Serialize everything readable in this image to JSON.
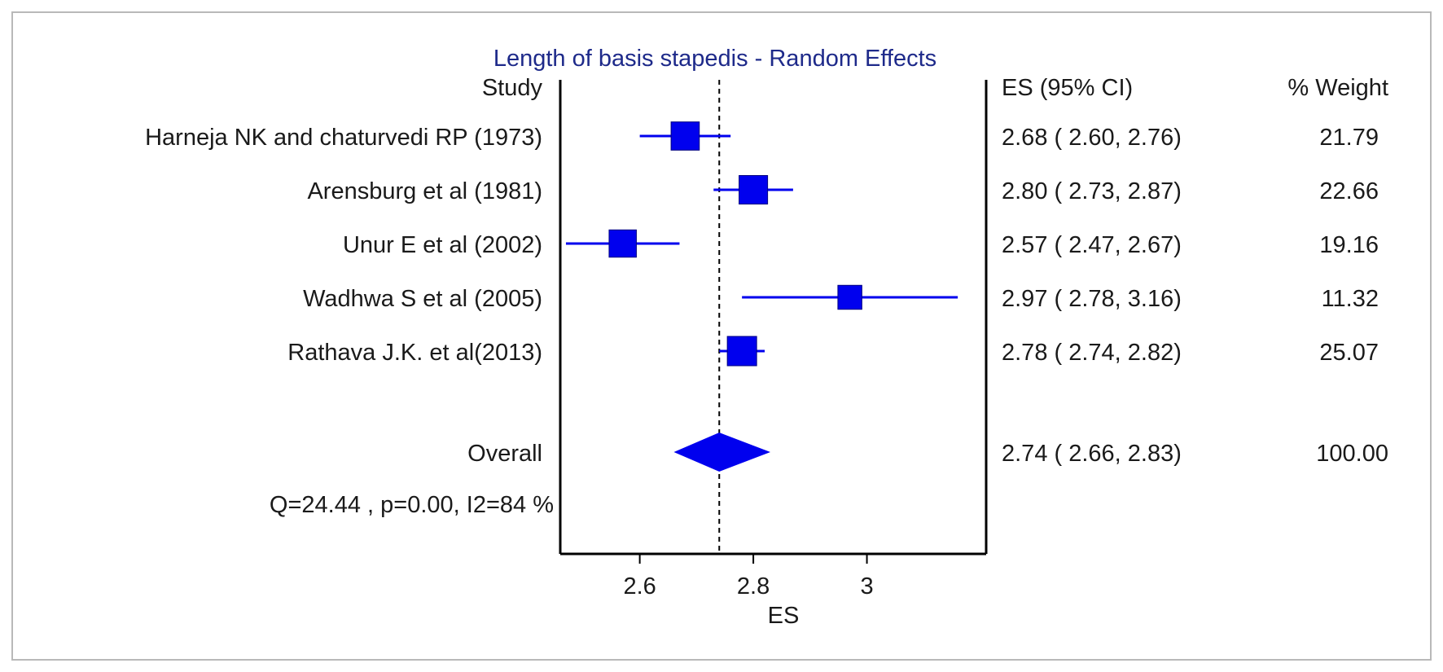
{
  "chart_data": {
    "type": "forest",
    "title": "Length of basis stapedis - Random Effects",
    "xlabel": "ES",
    "study_header": "Study",
    "es_header": "ES (95% CI)",
    "weight_header": "% Weight",
    "xlim": [
      2.46,
      3.21
    ],
    "xticks": [
      2.6,
      2.8,
      3
    ],
    "xtick_labels": [
      "2.6",
      "2.8",
      "3"
    ],
    "overall_line": 2.74,
    "colors": {
      "marker": "#0000ee",
      "title": "#1e2a8a",
      "axis": "#000000"
    },
    "studies": [
      {
        "name": "Harneja NK and chaturvedi RP (1973)",
        "es": 2.68,
        "lo": 2.6,
        "hi": 2.76,
        "ci_text": "2.68  ( 2.60, 2.76)",
        "weight": "21.79"
      },
      {
        "name": "Arensburg et al (1981)",
        "es": 2.8,
        "lo": 2.73,
        "hi": 2.87,
        "ci_text": "2.80  ( 2.73, 2.87)",
        "weight": "22.66"
      },
      {
        "name": "Unur E et al (2002)",
        "es": 2.57,
        "lo": 2.47,
        "hi": 2.67,
        "ci_text": "2.57  ( 2.47, 2.67)",
        "weight": "19.16"
      },
      {
        "name": "Wadhwa S et al (2005)",
        "es": 2.97,
        "lo": 2.78,
        "hi": 3.16,
        "ci_text": "2.97  ( 2.78, 3.16)",
        "weight": "11.32"
      },
      {
        "name": "Rathava J.K. et al(2013)",
        "es": 2.78,
        "lo": 2.74,
        "hi": 2.82,
        "ci_text": "2.78  ( 2.74, 2.82)",
        "weight": "25.07"
      }
    ],
    "overall": {
      "name": "Overall",
      "es": 2.74,
      "lo": 2.66,
      "hi": 2.83,
      "ci_text": "2.74  ( 2.66, 2.83)",
      "weight": "100.00"
    },
    "heterogeneity": "Q=24.44 , p=0.00, I2=84 %"
  }
}
